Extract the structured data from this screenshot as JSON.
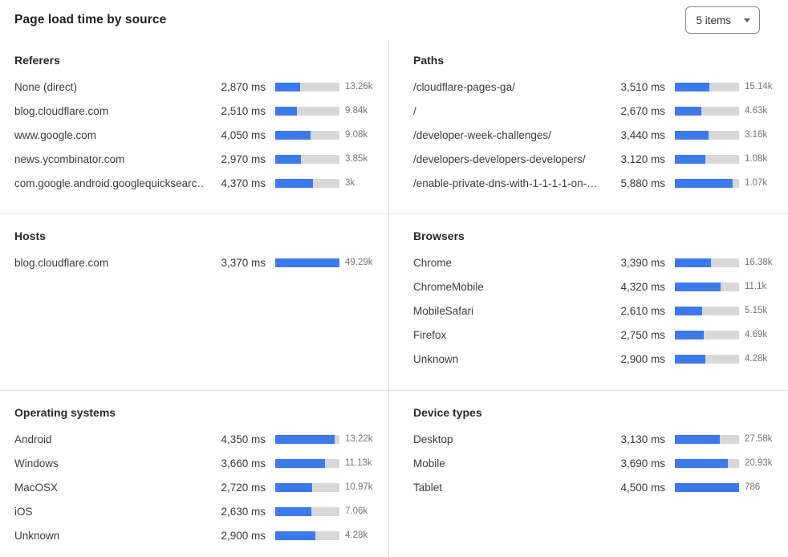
{
  "header": {
    "title": "Page load time by source",
    "items_dropdown": {
      "value": "5 items"
    }
  },
  "colors": {
    "bar_fill": "#3c7aeb",
    "bar_track": "#d8d8d8",
    "divider": "#e0e0e0"
  },
  "panels": [
    {
      "title": "Referers",
      "rows": [
        {
          "label": "None (direct)",
          "value": "2,870 ms",
          "bar_pct": 39,
          "count": "13.26k"
        },
        {
          "label": "blog.cloudflare.com",
          "value": "2,510 ms",
          "bar_pct": 34,
          "count": "9.84k"
        },
        {
          "label": "www.google.com",
          "value": "4,050 ms",
          "bar_pct": 55,
          "count": "9.08k"
        },
        {
          "label": "news.ycombinator.com",
          "value": "2,970 ms",
          "bar_pct": 40,
          "count": "3.85k"
        },
        {
          "label": "com.google.android.googlequicksearc…",
          "value": "4,370 ms",
          "bar_pct": 59,
          "count": "3k"
        }
      ]
    },
    {
      "title": "Paths",
      "rows": [
        {
          "label": "/cloudflare-pages-ga/",
          "value": "3,510 ms",
          "bar_pct": 54,
          "count": "15.14k"
        },
        {
          "label": "/",
          "value": "2,670 ms",
          "bar_pct": 41,
          "count": "4.63k"
        },
        {
          "label": "/developer-week-challenges/",
          "value": "3,440 ms",
          "bar_pct": 53,
          "count": "3.16k"
        },
        {
          "label": "/developers-developers-developers/",
          "value": "3,120 ms",
          "bar_pct": 48,
          "count": "1.08k"
        },
        {
          "label": "/enable-private-dns-with-1-1-1-1-on-…",
          "value": "5,880 ms",
          "bar_pct": 90,
          "count": "1.07k"
        }
      ]
    },
    {
      "title": "Hosts",
      "rows": [
        {
          "label": "blog.cloudflare.com",
          "value": "3,370 ms",
          "bar_pct": 100,
          "count": "49.29k"
        }
      ]
    },
    {
      "title": "Browsers",
      "rows": [
        {
          "label": "Chrome",
          "value": "3,390 ms",
          "bar_pct": 56,
          "count": "16.38k"
        },
        {
          "label": "ChromeMobile",
          "value": "4,320 ms",
          "bar_pct": 71,
          "count": "11.1k"
        },
        {
          "label": "MobileSafari",
          "value": "2,610 ms",
          "bar_pct": 43,
          "count": "5.15k"
        },
        {
          "label": "Firefox",
          "value": "2,750 ms",
          "bar_pct": 45,
          "count": "4.69k"
        },
        {
          "label": "Unknown",
          "value": "2,900 ms",
          "bar_pct": 48,
          "count": "4.28k"
        }
      ]
    },
    {
      "title": "Operating systems",
      "rows": [
        {
          "label": "Android",
          "value": "4,350 ms",
          "bar_pct": 93,
          "count": "13.22k"
        },
        {
          "label": "Windows",
          "value": "3,660 ms",
          "bar_pct": 78,
          "count": "11.13k"
        },
        {
          "label": "MacOSX",
          "value": "2,720 ms",
          "bar_pct": 58,
          "count": "10.97k"
        },
        {
          "label": "iOS",
          "value": "2,630 ms",
          "bar_pct": 56,
          "count": "7.06k"
        },
        {
          "label": "Unknown",
          "value": "2,900 ms",
          "bar_pct": 62,
          "count": "4.28k"
        }
      ]
    },
    {
      "title": "Device types",
      "rows": [
        {
          "label": "Desktop",
          "value": "3,130 ms",
          "bar_pct": 70,
          "count": "27.58k"
        },
        {
          "label": "Mobile",
          "value": "3,690 ms",
          "bar_pct": 82,
          "count": "20.93k"
        },
        {
          "label": "Tablet",
          "value": "4,500 ms",
          "bar_pct": 100,
          "count": "786"
        }
      ]
    }
  ],
  "chart_data": [
    {
      "type": "bar",
      "title": "Referers",
      "categories": [
        "None (direct)",
        "blog.cloudflare.com",
        "www.google.com",
        "news.ycombinator.com",
        "com.google.android.googlequicksearc…"
      ],
      "values": [
        2870,
        2510,
        4050,
        2970,
        4370
      ],
      "value_unit": "ms",
      "counts": [
        "13.26k",
        "9.84k",
        "9.08k",
        "3.85k",
        "3k"
      ]
    },
    {
      "type": "bar",
      "title": "Paths",
      "categories": [
        "/cloudflare-pages-ga/",
        "/",
        "/developer-week-challenges/",
        "/developers-developers-developers/",
        "/enable-private-dns-with-1-1-1-1-on-…"
      ],
      "values": [
        3510,
        2670,
        3440,
        3120,
        5880
      ],
      "value_unit": "ms",
      "counts": [
        "15.14k",
        "4.63k",
        "3.16k",
        "1.08k",
        "1.07k"
      ]
    },
    {
      "type": "bar",
      "title": "Hosts",
      "categories": [
        "blog.cloudflare.com"
      ],
      "values": [
        3370
      ],
      "value_unit": "ms",
      "counts": [
        "49.29k"
      ]
    },
    {
      "type": "bar",
      "title": "Browsers",
      "categories": [
        "Chrome",
        "ChromeMobile",
        "MobileSafari",
        "Firefox",
        "Unknown"
      ],
      "values": [
        3390,
        4320,
        2610,
        2750,
        2900
      ],
      "value_unit": "ms",
      "counts": [
        "16.38k",
        "11.1k",
        "5.15k",
        "4.69k",
        "4.28k"
      ]
    },
    {
      "type": "bar",
      "title": "Operating systems",
      "categories": [
        "Android",
        "Windows",
        "MacOSX",
        "iOS",
        "Unknown"
      ],
      "values": [
        4350,
        3660,
        2720,
        2630,
        2900
      ],
      "value_unit": "ms",
      "counts": [
        "13.22k",
        "11.13k",
        "10.97k",
        "7.06k",
        "4.28k"
      ]
    },
    {
      "type": "bar",
      "title": "Device types",
      "categories": [
        "Desktop",
        "Mobile",
        "Tablet"
      ],
      "values": [
        3130,
        3690,
        4500
      ],
      "value_unit": "ms",
      "counts": [
        "27.58k",
        "20.93k",
        "786"
      ]
    }
  ]
}
